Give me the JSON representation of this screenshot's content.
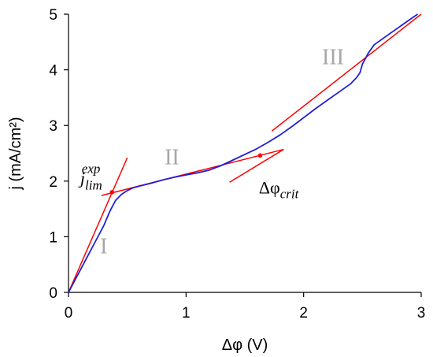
{
  "chart_data": {
    "type": "line",
    "xlabel": "Δφ (V)",
    "ylabel": "j (mA/cm²)",
    "xlim": [
      0,
      3
    ],
    "ylim": [
      0,
      5
    ],
    "x_ticks": [
      "0",
      "1",
      "2",
      "3"
    ],
    "y_ticks": [
      "0",
      "1",
      "2",
      "3",
      "4",
      "5"
    ],
    "grid": false,
    "legend": "none",
    "series": [
      {
        "color": "#1f1fd6",
        "x": [
          0,
          0.1,
          0.2,
          0.3,
          0.35,
          0.4,
          0.45,
          0.5,
          0.55,
          0.6,
          0.7,
          0.8,
          0.9,
          1.0,
          1.1,
          1.2,
          1.3,
          1.4,
          1.5,
          1.6,
          1.7,
          1.8,
          1.9,
          2.0,
          2.1,
          2.2,
          2.3,
          2.4,
          2.45,
          2.48,
          2.5,
          2.55,
          2.6,
          2.7,
          2.8,
          2.9,
          2.97
        ],
        "y": [
          0,
          0.4,
          0.8,
          1.2,
          1.45,
          1.65,
          1.76,
          1.83,
          1.88,
          1.91,
          1.96,
          2.02,
          2.07,
          2.11,
          2.15,
          2.2,
          2.28,
          2.38,
          2.48,
          2.58,
          2.7,
          2.83,
          2.98,
          3.14,
          3.3,
          3.45,
          3.6,
          3.75,
          3.86,
          3.95,
          4.1,
          4.3,
          4.45,
          4.6,
          4.75,
          4.9,
          5.0
        ]
      }
    ],
    "fit_lines": [
      {
        "color": "#ff0000",
        "x": [
          0,
          0.5
        ],
        "y": [
          0,
          2.42
        ]
      },
      {
        "color": "#ff0000",
        "x": [
          0.28,
          1.83
        ],
        "y": [
          1.74,
          2.57
        ]
      },
      {
        "color": "#ff0000",
        "x": [
          1.37,
          1.83
        ],
        "y": [
          1.98,
          2.57
        ]
      },
      {
        "color": "#ff0000",
        "x": [
          1.73,
          3.0
        ],
        "y": [
          2.9,
          5.0
        ]
      }
    ],
    "marked_points": [
      {
        "x": 0.37,
        "y": 1.8
      },
      {
        "x": 1.63,
        "y": 2.46
      }
    ],
    "region_labels": [
      {
        "text": "I",
        "x": 0.3,
        "y": 0.7
      },
      {
        "text": "II",
        "x": 0.88,
        "y": 2.3
      },
      {
        "text": "III",
        "x": 2.25,
        "y": 4.1
      }
    ],
    "annotations": {
      "jlim": {
        "base": "j",
        "sub": "lim",
        "sup": "exp",
        "x": 0.1,
        "y": 1.95
      },
      "dphi": {
        "base": "Δφ",
        "sub": "crit",
        "x": 1.62,
        "y": 1.78
      }
    }
  }
}
